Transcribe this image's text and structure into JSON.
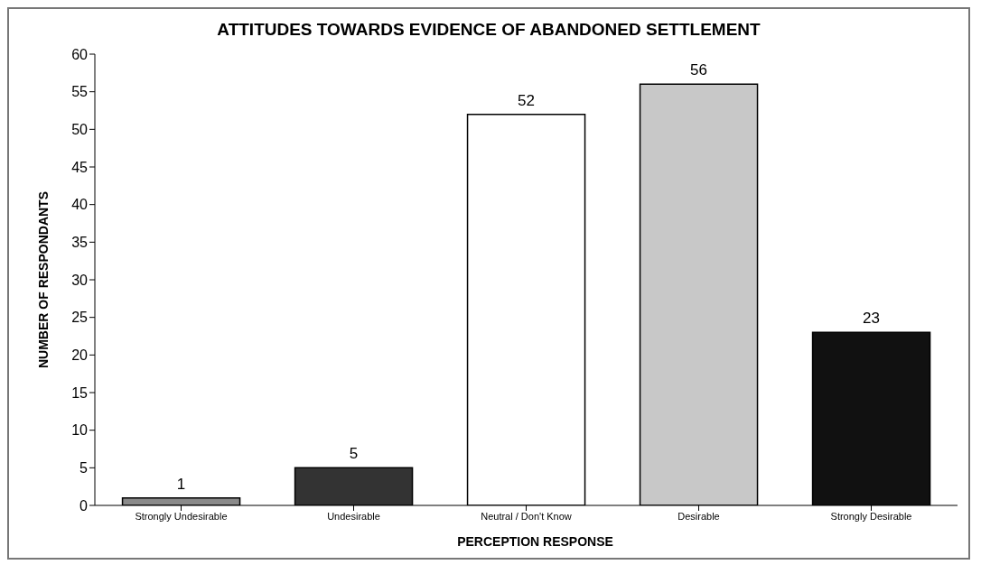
{
  "chart_data": {
    "type": "bar",
    "title": "ATTITUDES TOWARDS EVIDENCE OF ABANDONED SETTLEMENT",
    "xlabel": "PERCEPTION RESPONSE",
    "ylabel": "NUMBER OF RESPONDANTS",
    "categories": [
      "Strongly Undesirable",
      "Undesirable",
      "Neutral / Don't Know",
      "Desirable",
      "Strongly Desirable"
    ],
    "values": [
      1,
      5,
      52,
      56,
      23
    ],
    "colors": [
      "#8a8a8a",
      "#333333",
      "#ffffff",
      "#c8c8c8",
      "#111111"
    ],
    "ylim": [
      0,
      60
    ],
    "yticks": [
      0,
      5,
      10,
      15,
      20,
      25,
      30,
      35,
      40,
      45,
      50,
      55,
      60
    ],
    "grid": false,
    "data_labels": true
  }
}
